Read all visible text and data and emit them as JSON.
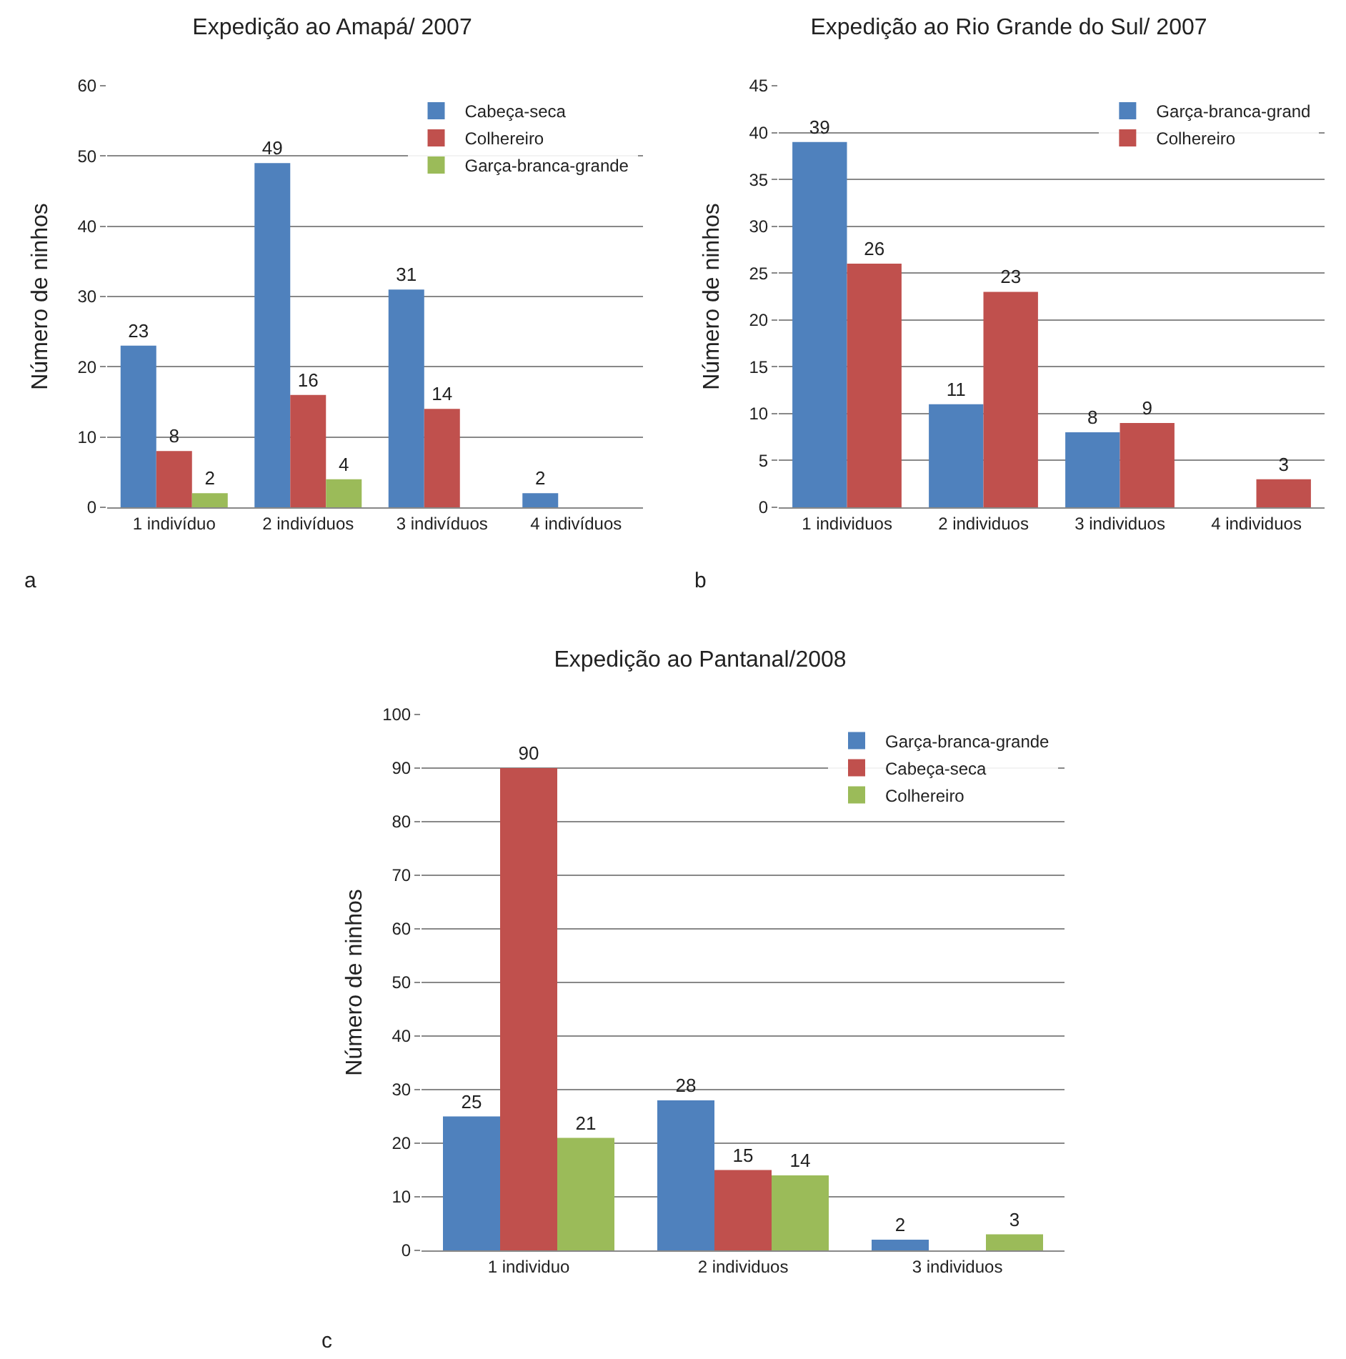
{
  "chart_data": [
    {
      "type": "bar",
      "title": "Expedição ao Amapá/ 2007",
      "ylabel": "Número de ninhos",
      "categories": [
        "1 indivíduo",
        "2 indivíduos",
        "3 indivíduos",
        "4 indivíduos"
      ],
      "series": [
        {
          "name": "Cabeça-seca",
          "color": "#4f81bd",
          "values": [
            23,
            49,
            31,
            2
          ]
        },
        {
          "name": "Colhereiro",
          "color": "#c0504d",
          "values": [
            8,
            16,
            14,
            null
          ]
        },
        {
          "name": "Garça-branca-grande",
          "color": "#9bbb59",
          "values": [
            2,
            4,
            null,
            null
          ]
        }
      ],
      "ylim": [
        0,
        60
      ],
      "yticks": [
        0,
        10,
        20,
        30,
        40,
        50,
        60
      ],
      "grid": "y",
      "legend": "top right",
      "data_labels": true,
      "annotations": [
        "a"
      ]
    },
    {
      "type": "bar",
      "title": "Expedição ao Rio Grande do Sul/ 2007",
      "ylabel": "Número de ninhos",
      "categories": [
        "1 individuos",
        "2 individuos",
        "3 individuos",
        "4 individuos"
      ],
      "series": [
        {
          "name": "Garça-branca-grand",
          "color": "#4f81bd",
          "values": [
            39,
            11,
            8,
            null
          ]
        },
        {
          "name": "Colhereiro",
          "color": "#c0504d",
          "values": [
            26,
            23,
            9,
            3
          ]
        }
      ],
      "ylim": [
        0,
        45
      ],
      "yticks": [
        0,
        5,
        10,
        15,
        20,
        25,
        30,
        35,
        40,
        45
      ],
      "grid": "y",
      "legend": "top right",
      "data_labels": true,
      "annotations": [
        "b"
      ]
    },
    {
      "type": "bar",
      "title": "Expedição ao Pantanal/2008",
      "ylabel": "Número de ninhos",
      "categories": [
        "1 individuo",
        "2 individuos",
        "3 individuos"
      ],
      "series": [
        {
          "name": "Garça-branca-grande",
          "color": "#4f81bd",
          "values": [
            25,
            28,
            2
          ]
        },
        {
          "name": "Cabeça-seca",
          "color": "#c0504d",
          "values": [
            90,
            15,
            null
          ]
        },
        {
          "name": "Colhereiro",
          "color": "#9bbb59",
          "values": [
            21,
            14,
            3
          ]
        }
      ],
      "ylim": [
        0,
        100
      ],
      "yticks": [
        0,
        10,
        20,
        30,
        40,
        50,
        60,
        70,
        80,
        90,
        100
      ],
      "grid": "y",
      "legend": "top right",
      "data_labels": true,
      "annotations": [
        "c"
      ]
    }
  ]
}
